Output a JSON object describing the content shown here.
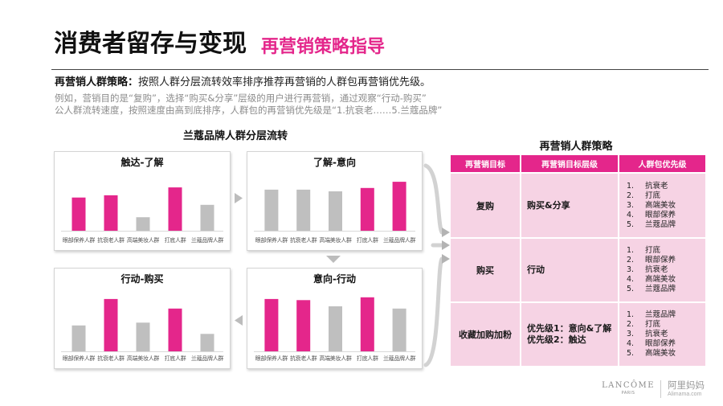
{
  "header": {
    "title": "消费者留存与变现",
    "subtitle": "再营销策略指导"
  },
  "intro": {
    "label": "再营销人群策略：",
    "text": "按照人群分层流转效率排序推荐再营销的人群包再营销优先级。",
    "example_lines": [
      "例如，营销目的是“复购”，选择“购买&分享”层级的用户进行再营销，通过观察“行动-购买”",
      "公人群流转速度，按照速度由高到底排序，人群包的再营销优先级是“1.抗衰老……5.兰蔻品牌”"
    ]
  },
  "flow": {
    "title": "兰蔻品牌人群分层流转"
  },
  "chart_data": [
    {
      "type": "bar",
      "title": "触达-了解",
      "categories": [
        "眼部保养人群",
        "抗衰老人群",
        "高端美妆人群",
        "打底人群",
        "兰蔻品牌人群"
      ],
      "values": [
        59,
        63,
        24,
        77,
        46
      ],
      "highlight": [
        true,
        true,
        false,
        true,
        false
      ]
    },
    {
      "type": "bar",
      "title": "了解-意向",
      "categories": [
        "眼部保养人群",
        "抗衰老人群",
        "高端美妆人群",
        "打底人群",
        "兰蔻品牌人群"
      ],
      "values": [
        73,
        73,
        70,
        76,
        87
      ],
      "highlight": [
        false,
        false,
        false,
        true,
        true
      ]
    },
    {
      "type": "bar",
      "title": "行动-购买",
      "categories": [
        "眼部保养人群",
        "抗衰老人群",
        "高端美妆人群",
        "打底人群",
        "兰蔻品牌人群"
      ],
      "values": [
        46,
        93,
        51,
        76,
        31
      ],
      "highlight": [
        false,
        true,
        false,
        true,
        false
      ]
    },
    {
      "type": "bar",
      "title": "意向-行动",
      "categories": [
        "眼部保养人群",
        "抗衰老人群",
        "高端美妆人群",
        "打底人群",
        "兰蔻品牌人群"
      ],
      "values": [
        93,
        91,
        80,
        96,
        76
      ],
      "highlight": [
        true,
        true,
        false,
        true,
        false
      ]
    }
  ],
  "strategy": {
    "title": "再营销人群策略",
    "headers": [
      "再营销目标",
      "再营销目标层级",
      "人群包优先级"
    ],
    "rows": [
      {
        "goal": "复购",
        "level": [
          "购买&分享"
        ],
        "priority": [
          {
            "no": "1.",
            "name": "抗衰老"
          },
          {
            "no": "2.",
            "name": "打底"
          },
          {
            "no": "3.",
            "name": "高端美妆"
          },
          {
            "no": "4.",
            "name": "眼部保养"
          },
          {
            "no": "5.",
            "name": "兰蔻品牌"
          }
        ]
      },
      {
        "goal": "购买",
        "level": [
          "行动"
        ],
        "priority": [
          {
            "no": "1.",
            "name": "打底"
          },
          {
            "no": "2.",
            "name": "眼部保养"
          },
          {
            "no": "3.",
            "name": "抗衰老"
          },
          {
            "no": "4.",
            "name": "高端美妆"
          },
          {
            "no": "5.",
            "name": "兰蔻品牌"
          }
        ]
      },
      {
        "goal": "收藏加购加粉",
        "level": [
          "优先级1：意向&了解",
          "优先级2：触达"
        ],
        "priority": [
          {
            "no": "1.",
            "name": "兰蔻品牌"
          },
          {
            "no": "2.",
            "name": "打底"
          },
          {
            "no": "3.",
            "name": "抗衰老"
          },
          {
            "no": "4.",
            "name": "眼部保养"
          },
          {
            "no": "5.",
            "name": "高端美妆"
          }
        ]
      }
    ]
  },
  "footer": {
    "brand": "LANCÔME",
    "brand_sub": "PARIS",
    "partner": "阿里妈妈",
    "partner_sub": "Alimama.com"
  },
  "colors": {
    "accent": "#e4268b",
    "bar_highlight": "#e4268b",
    "bar_muted": "#bfbfbf",
    "table_row_bg": "#f6d3e4",
    "muted_text": "#8c8c8c"
  }
}
